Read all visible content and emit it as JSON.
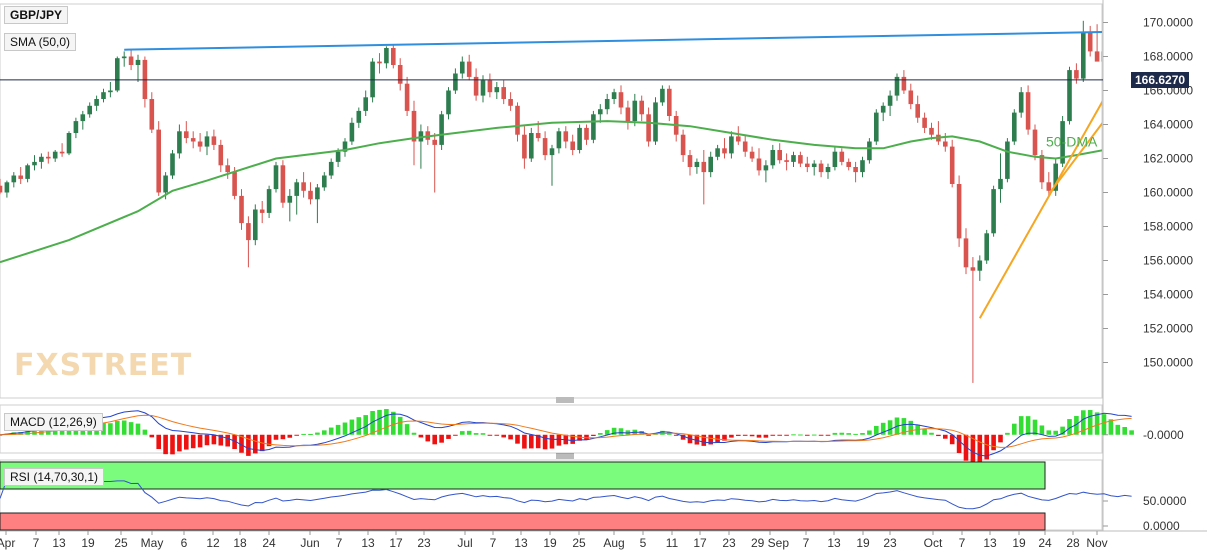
{
  "symbol": "GBP/JPY",
  "last_price": "166.6270",
  "watermark": "FXSTREET",
  "indicators": {
    "sma": "SMA (50,0)",
    "macd": "MACD (12,26,9)",
    "rsi": "RSI (14,70,30,1)"
  },
  "annotation_50dma": "50-DMA",
  "colors": {
    "up": "#2e7d4f",
    "down": "#d9534f",
    "sma": "#4cae4c",
    "resistance": "#2f8fde",
    "support": "#f5a623",
    "macd_line": "#2244cc",
    "signal_line": "#f07a1a",
    "hist_pos": "#33dd33",
    "hist_neg": "#ee1111",
    "rsi_over": "#7cfc7c",
    "rsi_under": "#ff8080",
    "rsi_line": "#3355cc"
  },
  "chart_data": [
    {
      "type": "candlestick",
      "title": "GBP/JPY",
      "ylim": [
        148.5,
        170.5
      ],
      "y_ticks": [
        "170.0000",
        "168.0000",
        "166.0000",
        "164.0000",
        "162.0000",
        "160.0000",
        "158.0000",
        "156.0000",
        "154.0000",
        "152.0000",
        "150.0000"
      ],
      "x_ticks": [
        "Apr",
        "7",
        "13",
        "19",
        "25",
        "May",
        "6",
        "12",
        "18",
        "24",
        "Jun",
        "7",
        "13",
        "17",
        "23",
        "Jul",
        "7",
        "13",
        "19",
        "25",
        "Aug",
        "5",
        "11",
        "17",
        "23",
        "29 Sep",
        "7",
        "13",
        "19",
        "23",
        "Oct",
        "7",
        "13",
        "19",
        "24",
        "28",
        "Nov"
      ],
      "last_price": 166.627,
      "candles": [
        [
          160.4,
          160.8,
          159.9,
          160.0
        ],
        [
          160.0,
          160.7,
          159.7,
          160.6
        ],
        [
          160.6,
          161.2,
          160.3,
          161.0
        ],
        [
          161.0,
          161.5,
          160.5,
          160.8
        ],
        [
          160.8,
          161.7,
          160.6,
          161.6
        ],
        [
          161.6,
          162.2,
          161.3,
          161.8
        ],
        [
          161.8,
          162.3,
          161.4,
          162.1
        ],
        [
          162.1,
          162.4,
          161.7,
          162.0
        ],
        [
          162.0,
          162.5,
          161.8,
          162.4
        ],
        [
          162.4,
          162.9,
          162.1,
          162.3
        ],
        [
          162.3,
          163.6,
          162.2,
          163.5
        ],
        [
          163.5,
          164.4,
          163.2,
          164.2
        ],
        [
          164.2,
          164.8,
          163.7,
          164.6
        ],
        [
          164.6,
          165.3,
          164.4,
          165.1
        ],
        [
          165.1,
          165.7,
          164.8,
          165.5
        ],
        [
          165.5,
          166.1,
          165.3,
          165.9
        ],
        [
          165.9,
          166.5,
          165.6,
          166.0
        ],
        [
          166.0,
          168.0,
          165.9,
          167.9
        ],
        [
          167.9,
          168.3,
          167.4,
          168.0
        ],
        [
          168.0,
          168.4,
          167.2,
          167.5
        ],
        [
          167.5,
          168.1,
          166.5,
          167.8
        ],
        [
          167.8,
          168.0,
          165.0,
          165.5
        ],
        [
          165.5,
          165.9,
          163.5,
          163.7
        ],
        [
          163.7,
          164.2,
          159.8,
          160.0
        ],
        [
          160.0,
          161.2,
          159.6,
          161.0
        ],
        [
          161.0,
          162.5,
          160.8,
          162.3
        ],
        [
          162.3,
          164.0,
          162.0,
          163.6
        ],
        [
          163.6,
          164.2,
          162.9,
          163.2
        ],
        [
          163.2,
          163.6,
          162.6,
          163.0
        ],
        [
          163.0,
          163.5,
          162.4,
          162.7
        ],
        [
          162.7,
          163.6,
          162.2,
          163.3
        ],
        [
          163.3,
          163.7,
          162.5,
          162.8
        ],
        [
          162.8,
          163.1,
          161.2,
          161.6
        ],
        [
          161.6,
          162.0,
          160.8,
          161.2
        ],
        [
          161.2,
          161.5,
          159.6,
          159.8
        ],
        [
          159.8,
          160.2,
          157.8,
          158.2
        ],
        [
          158.2,
          158.6,
          155.6,
          157.2
        ],
        [
          157.2,
          159.3,
          156.9,
          159.0
        ],
        [
          159.0,
          159.5,
          158.2,
          158.8
        ],
        [
          158.8,
          160.4,
          158.5,
          160.2
        ],
        [
          160.2,
          161.8,
          160.0,
          161.6
        ],
        [
          161.6,
          161.9,
          159.1,
          159.4
        ],
        [
          159.4,
          160.2,
          158.3,
          159.8
        ],
        [
          159.8,
          160.8,
          158.7,
          160.6
        ],
        [
          160.6,
          161.2,
          159.7,
          160.1
        ],
        [
          160.1,
          160.6,
          159.3,
          159.6
        ],
        [
          159.6,
          160.5,
          158.2,
          160.3
        ],
        [
          160.3,
          161.2,
          160.1,
          161.0
        ],
        [
          161.0,
          162.0,
          160.8,
          161.8
        ],
        [
          161.8,
          162.6,
          161.5,
          162.4
        ],
        [
          162.4,
          163.2,
          162.1,
          163.0
        ],
        [
          163.0,
          164.4,
          162.8,
          164.1
        ],
        [
          164.1,
          165.0,
          163.8,
          164.8
        ],
        [
          164.8,
          166.0,
          164.5,
          165.6
        ],
        [
          165.6,
          167.9,
          165.3,
          167.7
        ],
        [
          167.7,
          168.2,
          167.0,
          167.6
        ],
        [
          167.6,
          168.6,
          167.3,
          168.5
        ],
        [
          168.5,
          168.7,
          167.3,
          167.5
        ],
        [
          167.5,
          167.9,
          166.0,
          166.4
        ],
        [
          166.4,
          166.8,
          164.5,
          164.8
        ],
        [
          164.8,
          165.4,
          161.6,
          163.0
        ],
        [
          163.0,
          164.0,
          161.4,
          163.6
        ],
        [
          163.6,
          163.9,
          162.8,
          163.1
        ],
        [
          163.1,
          163.5,
          160.0,
          162.8
        ],
        [
          162.8,
          164.8,
          162.5,
          164.6
        ],
        [
          164.6,
          166.2,
          164.3,
          166.0
        ],
        [
          166.0,
          167.3,
          165.8,
          167.0
        ],
        [
          167.0,
          168.0,
          166.7,
          167.7
        ],
        [
          167.7,
          168.1,
          166.6,
          166.8
        ],
        [
          166.8,
          167.3,
          165.4,
          165.7
        ],
        [
          165.7,
          166.9,
          165.3,
          166.6
        ],
        [
          166.6,
          167.0,
          165.6,
          165.9
        ],
        [
          165.9,
          166.5,
          165.5,
          166.2
        ],
        [
          166.2,
          166.6,
          165.2,
          165.5
        ],
        [
          165.5,
          165.9,
          164.8,
          165.1
        ],
        [
          165.1,
          165.3,
          163.0,
          163.4
        ],
        [
          163.4,
          163.9,
          161.4,
          162.0
        ],
        [
          162.0,
          163.8,
          161.8,
          163.5
        ],
        [
          163.5,
          164.2,
          163.0,
          163.2
        ],
        [
          163.2,
          163.6,
          161.9,
          162.2
        ],
        [
          162.2,
          162.8,
          160.4,
          162.6
        ],
        [
          162.6,
          163.8,
          162.3,
          163.6
        ],
        [
          163.6,
          163.9,
          162.6,
          163.0
        ],
        [
          163.0,
          163.4,
          162.2,
          162.5
        ],
        [
          162.5,
          164.0,
          162.3,
          163.8
        ],
        [
          163.8,
          164.0,
          162.8,
          163.1
        ],
        [
          163.1,
          164.8,
          162.9,
          164.6
        ],
        [
          164.6,
          165.2,
          164.1,
          164.9
        ],
        [
          164.9,
          165.8,
          164.6,
          165.5
        ],
        [
          165.5,
          166.1,
          165.2,
          165.9
        ],
        [
          165.9,
          166.3,
          164.6,
          165.0
        ],
        [
          165.0,
          165.4,
          163.7,
          164.2
        ],
        [
          164.2,
          165.8,
          163.9,
          165.4
        ],
        [
          165.4,
          165.7,
          164.2,
          164.6
        ],
        [
          164.6,
          165.0,
          162.7,
          163.0
        ],
        [
          163.0,
          165.6,
          162.8,
          165.3
        ],
        [
          165.3,
          166.3,
          165.1,
          166.1
        ],
        [
          166.1,
          166.3,
          164.2,
          164.5
        ],
        [
          164.5,
          164.8,
          163.0,
          163.4
        ],
        [
          163.4,
          163.7,
          161.8,
          162.2
        ],
        [
          162.2,
          162.5,
          161.0,
          161.5
        ],
        [
          161.5,
          162.0,
          161.1,
          161.8
        ],
        [
          161.8,
          162.5,
          159.3,
          161.2
        ],
        [
          161.2,
          162.4,
          160.9,
          162.1
        ],
        [
          162.1,
          162.8,
          161.9,
          162.6
        ],
        [
          162.6,
          163.2,
          162.0,
          162.3
        ],
        [
          162.3,
          163.6,
          162.0,
          163.3
        ],
        [
          163.3,
          163.9,
          162.8,
          163.0
        ],
        [
          163.0,
          163.4,
          162.1,
          162.4
        ],
        [
          162.4,
          162.7,
          161.8,
          162.0
        ],
        [
          162.0,
          162.6,
          161.0,
          161.3
        ],
        [
          161.3,
          161.9,
          160.6,
          161.6
        ],
        [
          161.6,
          162.8,
          161.4,
          162.5
        ],
        [
          162.5,
          162.9,
          161.7,
          161.9
        ],
        [
          161.9,
          162.3,
          161.3,
          161.8
        ],
        [
          161.8,
          162.4,
          161.5,
          162.2
        ],
        [
          162.2,
          162.4,
          161.5,
          161.7
        ],
        [
          161.7,
          162.1,
          161.2,
          161.5
        ],
        [
          161.5,
          161.9,
          161.0,
          161.7
        ],
        [
          161.7,
          161.9,
          160.9,
          161.2
        ],
        [
          161.2,
          161.7,
          160.8,
          161.5
        ],
        [
          161.5,
          162.7,
          161.3,
          162.4
        ],
        [
          162.4,
          162.6,
          161.6,
          161.8
        ],
        [
          161.8,
          162.0,
          161.3,
          161.5
        ],
        [
          161.5,
          161.8,
          160.6,
          161.2
        ],
        [
          161.2,
          162.1,
          160.9,
          161.9
        ],
        [
          161.9,
          163.2,
          161.7,
          163.0
        ],
        [
          163.0,
          164.9,
          162.8,
          164.7
        ],
        [
          164.7,
          165.3,
          164.2,
          165.1
        ],
        [
          165.1,
          166.0,
          164.5,
          165.7
        ],
        [
          165.7,
          167.0,
          165.4,
          166.8
        ],
        [
          166.8,
          167.2,
          165.8,
          166.0
        ],
        [
          166.0,
          166.4,
          164.9,
          165.2
        ],
        [
          165.2,
          165.7,
          164.1,
          164.4
        ],
        [
          164.4,
          164.7,
          163.5,
          163.8
        ],
        [
          163.8,
          164.1,
          163.1,
          163.4
        ],
        [
          163.4,
          164.2,
          162.8,
          163.0
        ],
        [
          163.0,
          163.5,
          162.4,
          162.7
        ],
        [
          162.7,
          163.1,
          160.3,
          160.5
        ],
        [
          160.5,
          161.0,
          156.8,
          157.3
        ],
        [
          157.3,
          157.9,
          155.2,
          155.6
        ],
        [
          155.6,
          156.2,
          148.8,
          155.4
        ],
        [
          155.4,
          156.3,
          154.8,
          156.0
        ],
        [
          156.0,
          157.8,
          155.8,
          157.6
        ],
        [
          157.6,
          160.4,
          157.4,
          160.2
        ],
        [
          160.2,
          162.3,
          159.4,
          160.8
        ],
        [
          160.8,
          163.2,
          160.6,
          163.0
        ],
        [
          163.0,
          164.9,
          162.8,
          164.7
        ],
        [
          164.7,
          166.2,
          164.4,
          165.9
        ],
        [
          165.9,
          166.3,
          163.4,
          163.7
        ],
        [
          163.7,
          164.0,
          161.9,
          162.2
        ],
        [
          162.2,
          162.5,
          160.2,
          160.6
        ],
        [
          160.6,
          161.2,
          159.8,
          160.1
        ],
        [
          160.1,
          162.0,
          159.8,
          161.7
        ],
        [
          161.7,
          164.5,
          161.5,
          164.2
        ],
        [
          164.2,
          167.4,
          164.0,
          167.2
        ],
        [
          167.2,
          167.6,
          166.4,
          166.7
        ],
        [
          166.7,
          170.1,
          166.5,
          169.4
        ],
        [
          169.4,
          169.8,
          168.0,
          168.3
        ],
        [
          168.3,
          169.9,
          167.8,
          167.7
        ],
        [
          167.7,
          168.5,
          167.4,
          168.3
        ],
        [
          168.3,
          169.6,
          166.2,
          166.8
        ],
        [
          166.8,
          168.0,
          165.0,
          166.1
        ],
        [
          166.1,
          169.8,
          165.6,
          167.3
        ],
        [
          167.3,
          167.6,
          166.3,
          166.6
        ]
      ],
      "sma_50": [
        [
          0,
          155.9
        ],
        [
          10,
          157.2
        ],
        [
          20,
          158.9
        ],
        [
          25,
          160.1
        ],
        [
          30,
          160.7
        ],
        [
          40,
          162.0
        ],
        [
          50,
          162.5
        ],
        [
          55,
          162.9
        ],
        [
          60,
          163.2
        ],
        [
          66,
          163.5
        ],
        [
          72,
          163.8
        ],
        [
          80,
          164.1
        ],
        [
          88,
          164.2
        ],
        [
          94,
          164.1
        ],
        [
          100,
          163.9
        ],
        [
          106,
          163.5
        ],
        [
          112,
          163.1
        ],
        [
          118,
          162.8
        ],
        [
          124,
          162.6
        ],
        [
          128,
          162.6
        ],
        [
          132,
          163.0
        ],
        [
          135,
          163.2
        ],
        [
          138,
          163.3
        ],
        [
          142,
          163.0
        ],
        [
          146,
          162.4
        ],
        [
          150,
          162.1
        ],
        [
          153,
          162.0
        ],
        [
          156,
          162.2
        ],
        [
          160,
          162.5
        ],
        [
          163,
          162.9
        ],
        [
          164,
          163.0
        ]
      ],
      "resistance_line": [
        [
          18,
          168.4
        ],
        [
          168,
          169.5
        ]
      ],
      "support_lines": [
        [
          [
            142,
            152.6
          ],
          [
            165,
            169.1
          ]
        ],
        [
          [
            152,
            159.9
          ],
          [
            165,
            166.9
          ]
        ]
      ]
    },
    {
      "type": "line",
      "title": "MACD (12,26,9)",
      "y_ticks": [
        "-0.0000"
      ]
    },
    {
      "type": "line",
      "title": "RSI (14,70,30,1)",
      "y_ticks": [
        "50.0000",
        "0.0000"
      ],
      "ylim": [
        0,
        100
      ],
      "levels": [
        70,
        30
      ]
    }
  ]
}
